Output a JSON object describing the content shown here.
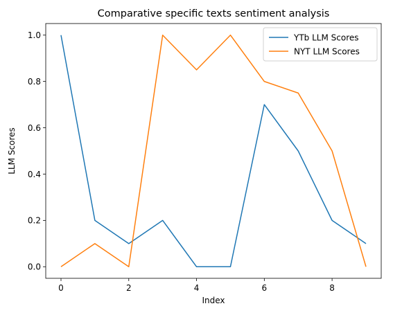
{
  "chart_data": {
    "type": "line",
    "title": "Comparative specific texts sentiment analysis",
    "xlabel": "Index",
    "ylabel": "LLM Scores",
    "x": [
      0,
      1,
      2,
      3,
      4,
      5,
      6,
      7,
      8,
      9
    ],
    "series": [
      {
        "name": "YTb LLM Scores",
        "color": "#1f77b4",
        "values": [
          1.0,
          0.2,
          0.1,
          0.2,
          0.0,
          0.0,
          0.7,
          0.5,
          0.2,
          0.1
        ]
      },
      {
        "name": "NYT LLM Scores",
        "color": "#ff7f0e",
        "values": [
          0.0,
          0.1,
          0.0,
          1.0,
          0.85,
          1.0,
          0.8,
          0.75,
          0.5,
          0.0
        ]
      }
    ],
    "xlim": [
      -0.45,
      9.45
    ],
    "ylim": [
      -0.05,
      1.05
    ],
    "xticks": [
      0,
      2,
      4,
      6,
      8
    ],
    "xtick_labels": [
      "0",
      "2",
      "4",
      "6",
      "8"
    ],
    "yticks": [
      0.0,
      0.2,
      0.4,
      0.6,
      0.8,
      1.0
    ],
    "ytick_labels": [
      "0.0",
      "0.2",
      "0.4",
      "0.6",
      "0.8",
      "1.0"
    ],
    "grid": false,
    "legend_position": "upper right"
  }
}
